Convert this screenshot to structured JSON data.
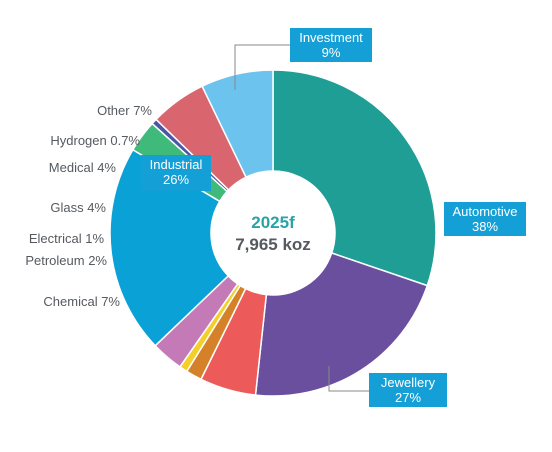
{
  "chart_data": {
    "type": "pie",
    "style": "donut",
    "center_title": "2025f",
    "center_value": "7,965 koz",
    "segments": [
      {
        "name": "Automotive",
        "value": 38,
        "value_label": "38%",
        "color": "#1f9e96",
        "label_style": "boxed"
      },
      {
        "name": "Jewellery",
        "value": 27,
        "value_label": "27%",
        "color": "#6a4f9e",
        "label_style": "boxed"
      },
      {
        "name": "Chemical",
        "value": 7,
        "value_label": "Chemical 7%",
        "color": "#ec5b5a",
        "label_style": "plain"
      },
      {
        "name": "Petroleum",
        "value": 2,
        "value_label": "Petroleum 2%",
        "color": "#d4812a",
        "label_style": "plain"
      },
      {
        "name": "Electrical",
        "value": 1,
        "value_label": "Electrical 1%",
        "color": "#f3cf2c",
        "label_style": "plain"
      },
      {
        "name": "Glass",
        "value": 4,
        "value_label": "Glass 4%",
        "color": "#c57ab8",
        "label_style": "plain"
      },
      {
        "name": "Industrial",
        "value": 26,
        "value_label": "26%",
        "color": "#0aa2d6",
        "label_style": "boxed-inner"
      },
      {
        "name": "Medical",
        "value": 4,
        "value_label": "Medical 4%",
        "color": "#3fba7b",
        "label_style": "plain"
      },
      {
        "name": "Hydrogen",
        "value": 0.7,
        "value_label": "Hydrogen 0.7%",
        "color": "#4a57a8",
        "label_style": "plain"
      },
      {
        "name": "Other",
        "value": 7,
        "value_label": "Other 7%",
        "color": "#d9656f",
        "label_style": "plain"
      },
      {
        "name": "Investment",
        "value": 9,
        "value_label": "9%",
        "color": "#6cc3ee",
        "label_style": "boxed"
      }
    ],
    "colors": {
      "label_box": "#14a0d6",
      "label_text": "#555a5f",
      "center_year": "#2aa3a8",
      "center_total": "#555a5f",
      "leader_line": "#888888"
    }
  }
}
